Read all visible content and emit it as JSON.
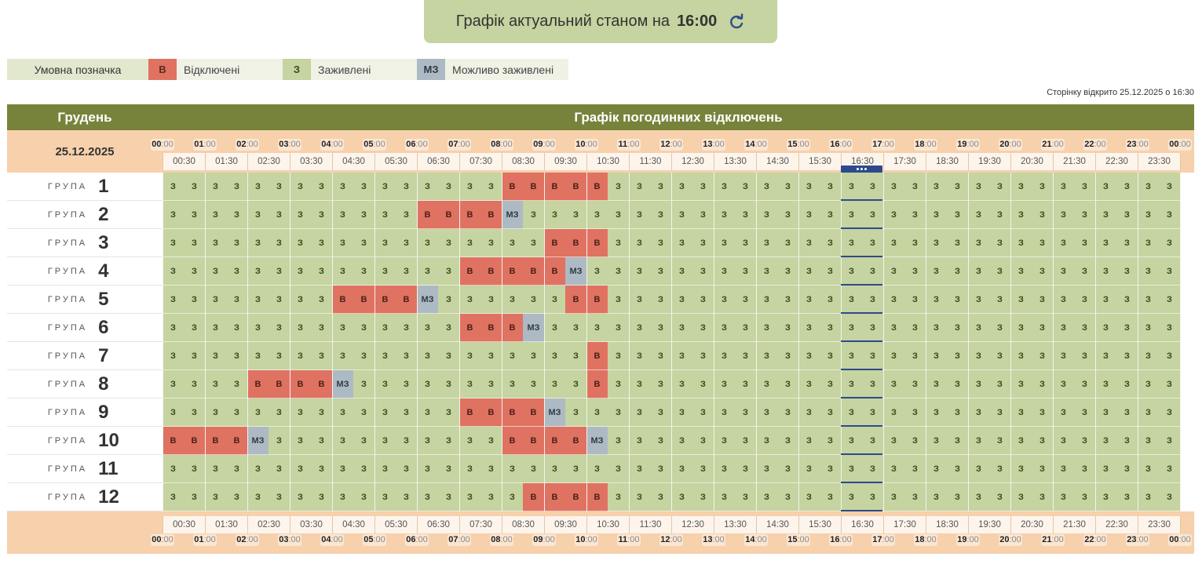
{
  "banner": {
    "text": "Графік актуальний станом на",
    "time": "16:00",
    "refresh_icon": "refresh-icon"
  },
  "legend": {
    "title": "Умовна позначка",
    "items": [
      {
        "code": "В",
        "label": "Відключені",
        "color": "#e07262"
      },
      {
        "code": "З",
        "label": "Заживлені",
        "color": "#c5d4a0"
      },
      {
        "code": "МЗ",
        "label": "Можливо заживлені",
        "color": "#adbac4"
      }
    ]
  },
  "opened_text": "Сторінку відкрито 25.12.2025 о 16:30",
  "header": {
    "month": "Грудень",
    "title": "Графік погодинних відключень"
  },
  "date": "25.12.2025",
  "hours": [
    "00",
    "01",
    "02",
    "03",
    "04",
    "05",
    "06",
    "07",
    "08",
    "09",
    "10",
    "11",
    "12",
    "13",
    "14",
    "15",
    "16",
    "17",
    "18",
    "19",
    "20",
    "21",
    "22",
    "23",
    "00"
  ],
  "hour_suffix": ":00",
  "halves": [
    "00:30",
    "01:30",
    "02:30",
    "03:30",
    "04:30",
    "05:30",
    "06:30",
    "07:30",
    "08:30",
    "09:30",
    "10:30",
    "11:30",
    "12:30",
    "13:30",
    "14:30",
    "15:30",
    "16:30",
    "17:30",
    "18:30",
    "19:30",
    "20:30",
    "21:30",
    "22:30",
    "23:30"
  ],
  "current_slot": "16:30",
  "group_label": "ГРУПА",
  "codes": {
    "z": "З",
    "v": "В",
    "mz": "МЗ"
  },
  "groups": [
    {
      "num": "1",
      "outages": [
        {
          "start": 16,
          "end": 21,
          "mz": null
        }
      ]
    },
    {
      "num": "2",
      "outages": [
        {
          "start": 12,
          "end": 16,
          "mz": 16
        }
      ]
    },
    {
      "num": "3",
      "outages": [
        {
          "start": 18,
          "end": 21,
          "mz": null
        }
      ]
    },
    {
      "num": "4",
      "outages": [
        {
          "start": 14,
          "end": 19,
          "mz": 19
        }
      ]
    },
    {
      "num": "5",
      "outages": [
        {
          "start": 8,
          "end": 12,
          "mz": 12
        },
        {
          "start": 19,
          "end": 21,
          "mz": null
        }
      ]
    },
    {
      "num": "6",
      "outages": [
        {
          "start": 14,
          "end": 17,
          "mz": 17
        }
      ]
    },
    {
      "num": "7",
      "outages": [
        {
          "start": 20,
          "end": 21,
          "mz": null
        }
      ]
    },
    {
      "num": "8",
      "outages": [
        {
          "start": 4,
          "end": 8,
          "mz": 8
        },
        {
          "start": 20,
          "end": 21,
          "mz": null
        }
      ]
    },
    {
      "num": "9",
      "outages": [
        {
          "start": 14,
          "end": 18,
          "mz": 18
        }
      ]
    },
    {
      "num": "10",
      "outages": [
        {
          "start": 0,
          "end": 4,
          "mz": 4
        },
        {
          "start": 16,
          "end": 20,
          "mz": 20
        }
      ]
    },
    {
      "num": "11",
      "outages": []
    },
    {
      "num": "12",
      "outages": [
        {
          "start": 17,
          "end": 21,
          "mz": null
        }
      ]
    }
  ]
}
